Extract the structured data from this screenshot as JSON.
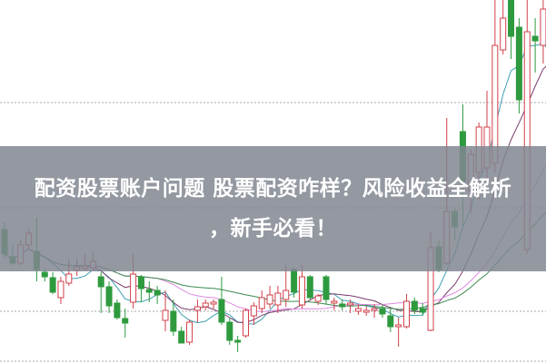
{
  "title": {
    "line1": "配资股票账户问题 股票配资咋样？风险收益全解析",
    "line2": "，新手必看！"
  },
  "colors": {
    "up": "#d2404a",
    "down": "#2e9a3e",
    "ma5": "#3f9fb0",
    "ma10": "#7a3d6e",
    "ma20": "#e08ae0",
    "ma30": "#3c8a50",
    "grid": "#aaaaaa",
    "banner": "#80868f"
  },
  "chart_data": {
    "type": "candlestick",
    "title": "",
    "xlabel": "",
    "ylabel": "",
    "grid": true,
    "legend": "none",
    "moving_averages": [
      5,
      10,
      20,
      30
    ],
    "ohlc": [
      [
        14.7,
        12.0,
        15.5,
        11.5
      ],
      [
        11.7,
        11.0,
        13.0,
        10.8
      ],
      [
        11.0,
        13.0,
        13.5,
        10.8
      ],
      [
        13.0,
        14.3,
        14.8,
        12.5
      ],
      [
        12.3,
        10.3,
        16.0,
        9.0
      ],
      [
        10.0,
        9.5,
        10.5,
        9.0
      ],
      [
        9.4,
        7.8,
        10.0,
        7.6
      ],
      [
        7.2,
        9.0,
        9.5,
        6.5
      ],
      [
        8.8,
        9.8,
        11.5,
        8.5
      ],
      [
        10.2,
        10.6,
        11.5,
        9.6
      ],
      [
        10.4,
        10.7,
        12.0,
        10.2
      ],
      [
        10.5,
        11.2,
        12.2,
        10.2
      ],
      [
        9.5,
        8.4,
        10.0,
        5.5
      ],
      [
        8.4,
        6.3,
        9.0,
        5.5
      ],
      [
        6.6,
        5.0,
        7.0,
        4.8
      ],
      [
        4.9,
        4.4,
        6.0,
        2.8
      ],
      [
        6.7,
        9.8,
        12.0,
        6.0
      ],
      [
        9.5,
        8.2,
        9.7,
        6.7
      ],
      [
        8.1,
        7.8,
        9.0,
        6.7
      ],
      [
        8.0,
        7.5,
        8.5,
        6.5
      ],
      [
        4.7,
        5.8,
        8.0,
        3.5
      ],
      [
        5.7,
        3.5,
        7.0,
        3.0
      ],
      [
        3.5,
        2.2,
        4.0,
        2.2
      ],
      [
        2.3,
        4.5,
        4.8,
        2.0
      ],
      [
        5.8,
        6.2,
        7.0,
        4.5
      ],
      [
        6.2,
        6.6,
        7.0,
        5.8
      ],
      [
        6.5,
        6.7,
        7.0,
        6.0
      ],
      [
        7.0,
        4.5,
        9.5,
        4.2
      ],
      [
        4.5,
        2.5,
        5.0,
        2.0
      ],
      [
        2.5,
        2.3,
        3.0,
        1.2
      ],
      [
        3.0,
        5.8,
        6.0,
        2.8
      ],
      [
        5.2,
        6.3,
        6.7,
        4.2
      ],
      [
        6.0,
        7.2,
        8.0,
        5.5
      ],
      [
        6.5,
        7.5,
        8.5,
        6.0
      ],
      [
        6.4,
        7.7,
        8.5,
        5.5
      ],
      [
        7.0,
        8.0,
        10.8,
        6.2
      ],
      [
        10.3,
        7.8,
        10.5,
        7.2
      ],
      [
        6.4,
        9.5,
        10.8,
        6.0
      ],
      [
        9.5,
        7.2,
        9.7,
        7.0
      ],
      [
        6.8,
        7.4,
        7.6,
        6.4
      ],
      [
        9.5,
        7.0,
        9.7,
        6.5
      ],
      [
        6.6,
        6.8,
        7.2,
        5.8
      ],
      [
        6.5,
        6.2,
        7.0,
        5.8
      ],
      [
        6.4,
        6.6,
        7.0,
        5.5
      ],
      [
        5.7,
        6.0,
        6.5,
        5.3
      ],
      [
        5.6,
        5.8,
        6.2,
        5.2
      ],
      [
        5.8,
        6.0,
        6.5,
        5.0
      ],
      [
        6.0,
        5.4,
        6.5,
        5.0
      ],
      [
        5.2,
        4.0,
        6.0,
        3.4
      ],
      [
        4.0,
        4.2,
        5.0,
        1.8
      ],
      [
        4.0,
        6.8,
        7.6,
        3.8
      ],
      [
        6.8,
        5.8,
        7.2,
        5.4
      ],
      [
        6.0,
        5.6,
        6.6,
        5.2
      ],
      [
        3.6,
        12.7,
        14.5,
        3.5
      ],
      [
        12.8,
        10.3,
        13.5,
        10.0
      ],
      [
        11.0,
        16.7,
        27.0,
        10.8
      ],
      [
        16.7,
        15.0,
        17.0,
        13.5
      ],
      [
        25.5,
        20.0,
        28.5,
        15.0
      ],
      [
        19.0,
        23.0,
        23.5,
        16.5
      ],
      [
        21.0,
        26.0,
        26.5,
        18.0
      ],
      [
        21.5,
        26.0,
        30.0,
        20.0
      ],
      [
        22.0,
        35.0,
        45.0,
        21.0
      ],
      [
        34.5,
        38.0,
        45.0,
        34.0
      ],
      [
        40.0,
        36.0,
        45.0,
        33.5
      ],
      [
        37.0,
        29.0,
        38.0,
        27.5
      ],
      [
        12.5,
        36.5,
        40.0,
        12.0
      ],
      [
        36.0,
        35.5,
        38.0,
        32.0
      ],
      [
        35.0,
        39.0,
        41.0,
        33.0
      ],
      [
        38.0,
        31.0,
        45.0,
        28.0
      ]
    ]
  }
}
